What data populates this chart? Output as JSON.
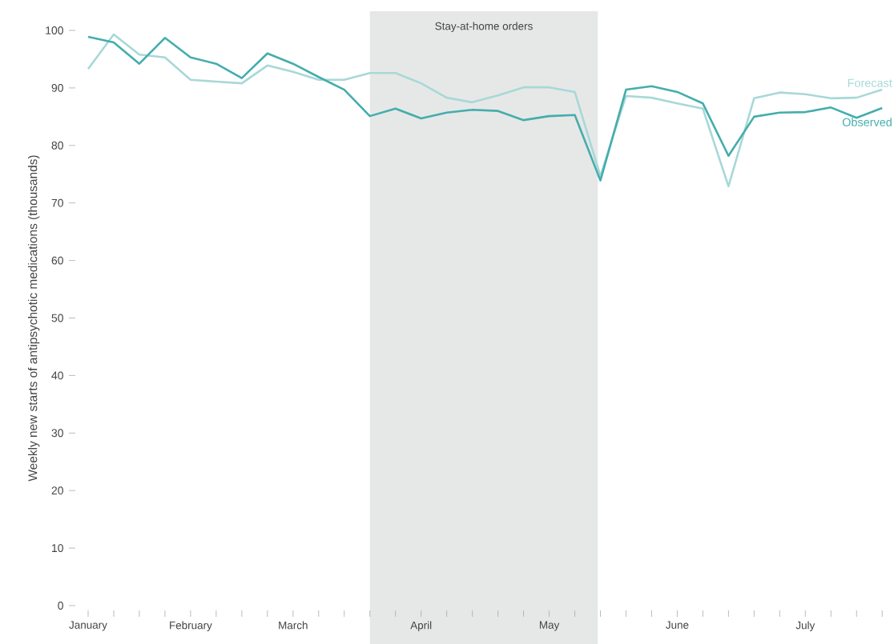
{
  "chart_data": {
    "type": "line",
    "ylabel": "Weekly new starts of antipsychotic medications (thousands)",
    "categories": [
      "January",
      null,
      null,
      null,
      "February",
      null,
      null,
      null,
      "March",
      null,
      null,
      null,
      null,
      "April",
      null,
      null,
      null,
      null,
      "May",
      null,
      null,
      null,
      null,
      "June",
      null,
      null,
      null,
      null,
      "July",
      null,
      null,
      null
    ],
    "ylim": [
      0,
      100
    ],
    "yticks": [
      0,
      10,
      20,
      30,
      40,
      50,
      60,
      70,
      80,
      90,
      100
    ],
    "annotations": [
      "Stay-at-home orders"
    ],
    "series": [
      {
        "name": "Forecast",
        "color": "#a8d8d8",
        "values": [
          93.3,
          99.3,
          95.8,
          95.3,
          91.4,
          91.1,
          90.8,
          93.9,
          92.8,
          91.4,
          91.4,
          92.6,
          92.6,
          90.8,
          88.3,
          87.5,
          88.7,
          90.1,
          90.1,
          89.3,
          74.7,
          88.6,
          88.3,
          87.3,
          86.4,
          72.9,
          88.2,
          89.2,
          88.9,
          88.2,
          88.3,
          89.7
        ]
      },
      {
        "name": "Observed",
        "color": "#45adad",
        "values": [
          98.9,
          97.9,
          94.2,
          98.7,
          95.3,
          94.2,
          91.7,
          96.0,
          94.2,
          91.9,
          89.7,
          85.1,
          86.4,
          84.7,
          85.7,
          86.2,
          86.0,
          84.4,
          85.1,
          85.3,
          73.9,
          89.7,
          90.3,
          89.3,
          87.3,
          78.2,
          85.0,
          85.7,
          85.8,
          86.6,
          84.8,
          86.5
        ]
      }
    ],
    "grid": false,
    "marker": "none",
    "line_style": "solid"
  }
}
